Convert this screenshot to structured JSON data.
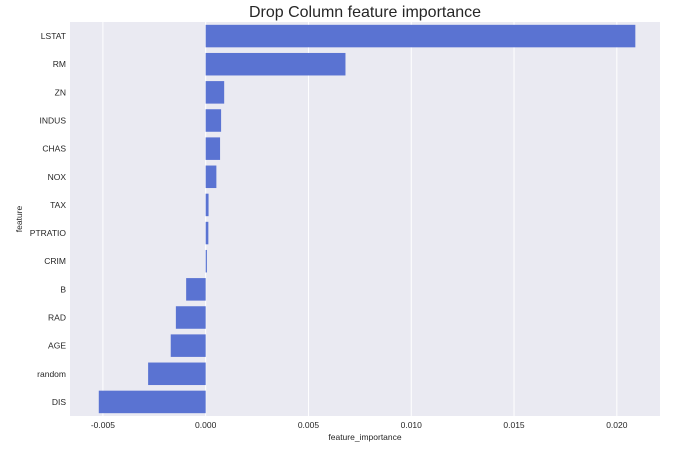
{
  "chart_data": {
    "type": "bar",
    "orientation": "horizontal",
    "title": "Drop Column feature importance",
    "xlabel": "feature_importance",
    "ylabel": "feature",
    "categories": [
      "LSTAT",
      "RM",
      "ZN",
      "INDUS",
      "CHAS",
      "NOX",
      "TAX",
      "PTRATIO",
      "CRIM",
      "B",
      "RAD",
      "AGE",
      "random",
      "DIS"
    ],
    "values": [
      0.0209,
      0.0068,
      0.0009,
      0.00075,
      0.0007,
      0.00052,
      0.00014,
      0.00013,
      6e-05,
      -0.00095,
      -0.00145,
      -0.0017,
      -0.0028,
      -0.0052
    ],
    "xlim": [
      -0.0066,
      0.0221
    ],
    "xticks": [
      -0.005,
      0.0,
      0.005,
      0.01,
      0.015,
      0.02
    ],
    "xtick_labels": [
      "-0.005",
      "0.000",
      "0.005",
      "0.010",
      "0.015",
      "0.020"
    ],
    "grid": true,
    "legend": false,
    "colors": {
      "bar": "#5a73d2",
      "plot_background": "#eaeaf2",
      "grid": "#ffffff",
      "text": "#262626"
    }
  }
}
